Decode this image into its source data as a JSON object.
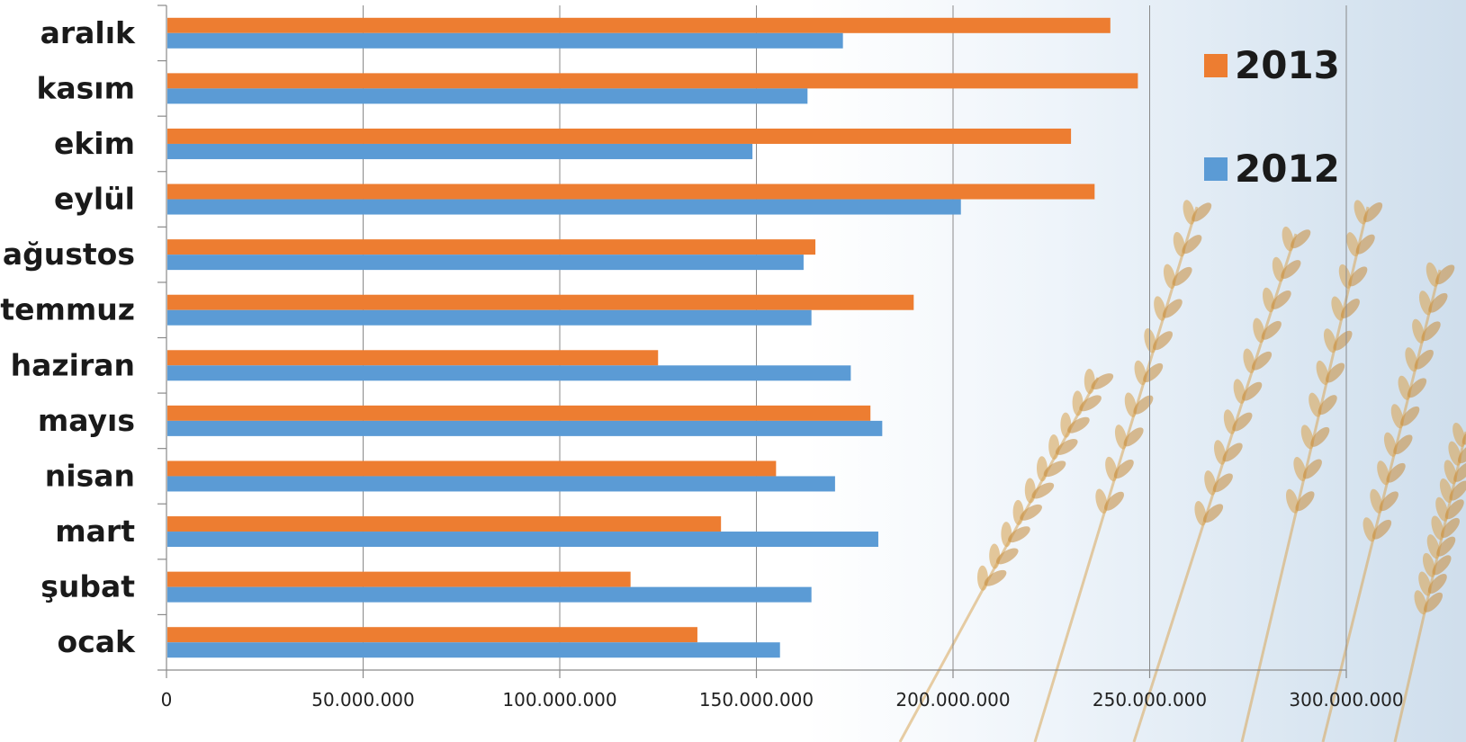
{
  "colors": {
    "series_2013": "#ed7d31",
    "series_2012": "#5b9bd5",
    "wheat": "#d9a75a"
  },
  "chart_data": {
    "type": "bar",
    "orientation": "horizontal",
    "categories": [
      "ocak",
      "şubat",
      "mart",
      "nisan",
      "mayıs",
      "haziran",
      "temmuz",
      "ağustos",
      "eylül",
      "ekim",
      "kasım",
      "aralık"
    ],
    "series": [
      {
        "name": "2013",
        "values": [
          135000000,
          118000000,
          141000000,
          155000000,
          179000000,
          125000000,
          190000000,
          165000000,
          236000000,
          230000000,
          247000000,
          240000000
        ]
      },
      {
        "name": "2012",
        "values": [
          156000000,
          164000000,
          181000000,
          170000000,
          182000000,
          174000000,
          164000000,
          162000000,
          202000000,
          149000000,
          163000000,
          172000000
        ]
      }
    ],
    "xlim": [
      0,
      300000000
    ],
    "xticks": [
      0,
      50000000,
      100000000,
      150000000,
      200000000,
      250000000,
      300000000
    ],
    "xtick_labels": [
      "0",
      "50.000.000",
      "100.000.000",
      "150.000.000",
      "200.000.000",
      "250.000.000",
      "300.000.000"
    ],
    "grid": "vertical",
    "legend_position": "top-right",
    "title": "",
    "xlabel": "",
    "ylabel": ""
  }
}
